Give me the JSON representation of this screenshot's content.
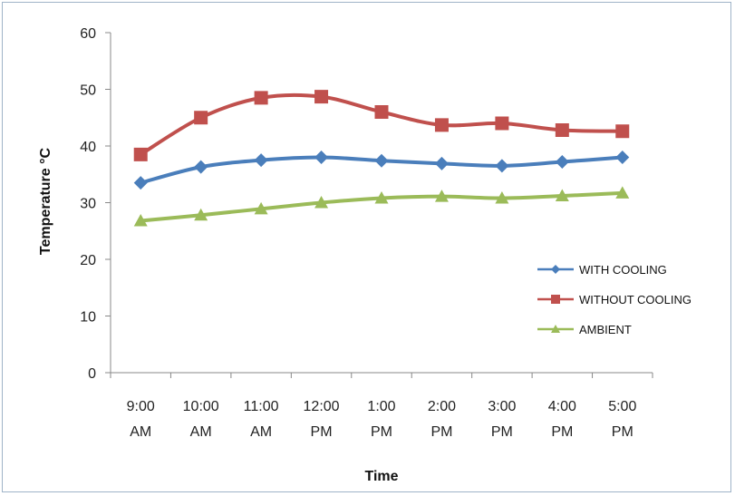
{
  "chart_data": {
    "type": "line",
    "title": "",
    "xlabel": "Time",
    "ylabel": "Temperature °C",
    "ylim": [
      0,
      60
    ],
    "yticks": [
      0,
      10,
      20,
      30,
      40,
      50,
      60
    ],
    "grid": false,
    "legend_position": "right",
    "categories": [
      [
        "9:00",
        "AM"
      ],
      [
        "10:00",
        "AM"
      ],
      [
        "11:00",
        "AM"
      ],
      [
        "12:00",
        "PM"
      ],
      [
        "1:00",
        "PM"
      ],
      [
        "2:00",
        "PM"
      ],
      [
        "3:00",
        "PM"
      ],
      [
        "4:00",
        "PM"
      ],
      [
        "5:00",
        "PM"
      ]
    ],
    "series": [
      {
        "name": "WITH COOLING",
        "color": "#4a7ebb",
        "marker": "diamond",
        "values": [
          33.5,
          36.3,
          37.5,
          38.0,
          37.4,
          36.9,
          36.5,
          37.2,
          38.0
        ]
      },
      {
        "name": "WITHOUT COOLING",
        "color": "#c0504d",
        "marker": "square",
        "values": [
          38.5,
          45.0,
          48.5,
          48.7,
          46.0,
          43.7,
          44.0,
          42.8,
          42.6
        ]
      },
      {
        "name": "AMBIENT",
        "color": "#9bbb59",
        "marker": "triangle",
        "values": [
          26.8,
          27.8,
          28.9,
          30.0,
          30.8,
          31.1,
          30.8,
          31.2,
          31.7
        ]
      }
    ]
  }
}
